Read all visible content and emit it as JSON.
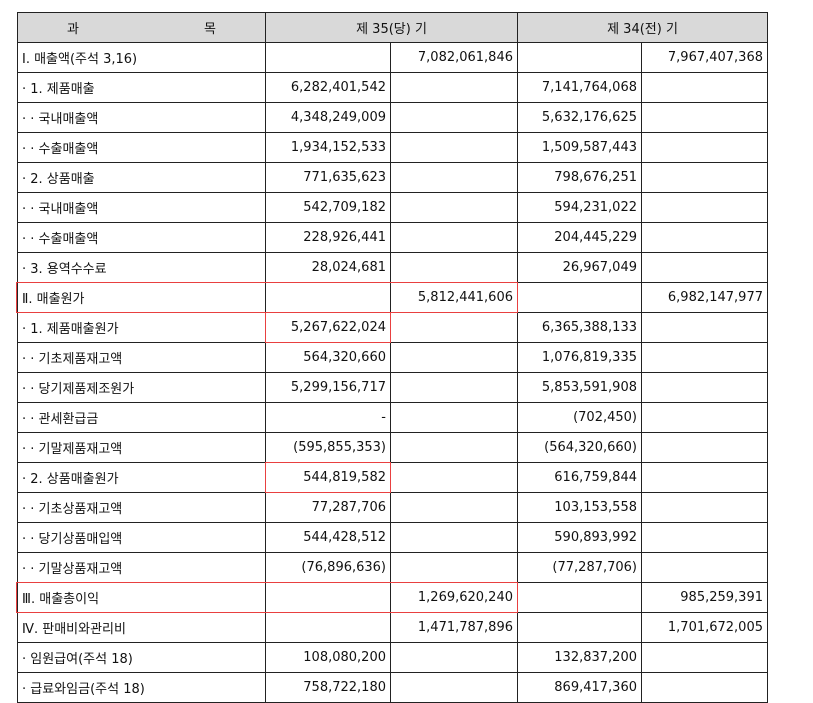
{
  "header": {
    "subject_left": "과",
    "subject_right": "목",
    "current": "제 35(당) 기",
    "previous": "제 34(전) 기"
  },
  "rows": [
    {
      "label": "Ⅰ. 매출액(주석 3,16)",
      "c1": "",
      "c2": "7,082,061,846",
      "p1": "",
      "p2": "7,967,407,368"
    },
    {
      "label": "· 1. 제품매출",
      "c1": "6,282,401,542",
      "c2": "",
      "p1": "7,141,764,068",
      "p2": ""
    },
    {
      "label": "· · 국내매출액",
      "c1": "4,348,249,009",
      "c2": "",
      "p1": "5,632,176,625",
      "p2": ""
    },
    {
      "label": "· · 수출매출액",
      "c1": "1,934,152,533",
      "c2": "",
      "p1": "1,509,587,443",
      "p2": ""
    },
    {
      "label": "· 2. 상품매출",
      "c1": "771,635,623",
      "c2": "",
      "p1": "798,676,251",
      "p2": ""
    },
    {
      "label": "· · 국내매출액",
      "c1": "542,709,182",
      "c2": "",
      "p1": "594,231,022",
      "p2": ""
    },
    {
      "label": "· · 수출매출액",
      "c1": "228,926,441",
      "c2": "",
      "p1": "204,445,229",
      "p2": ""
    },
    {
      "label": "· 3. 용역수수료",
      "c1": "28,024,681",
      "c2": "",
      "p1": "26,967,049",
      "p2": ""
    },
    {
      "label": "Ⅱ. 매출원가",
      "c1": "",
      "c2": "5,812,441,606",
      "p1": "",
      "p2": "6,982,147,977"
    },
    {
      "label": "· 1. 제품매출원가",
      "c1": "5,267,622,024",
      "c2": "",
      "p1": "6,365,388,133",
      "p2": ""
    },
    {
      "label": "· · 기초제품재고액",
      "c1": "564,320,660",
      "c2": "",
      "p1": "1,076,819,335",
      "p2": ""
    },
    {
      "label": "· · 당기제품제조원가",
      "c1": "5,299,156,717",
      "c2": "",
      "p1": "5,853,591,908",
      "p2": ""
    },
    {
      "label": "· · 관세환급금",
      "c1": "-",
      "c2": "",
      "p1": "(702,450)",
      "p2": ""
    },
    {
      "label": "· · 기말제품재고액",
      "c1": "(595,855,353)",
      "c2": "",
      "p1": "(564,320,660)",
      "p2": ""
    },
    {
      "label": "· 2. 상품매출원가",
      "c1": "544,819,582",
      "c2": "",
      "p1": "616,759,844",
      "p2": ""
    },
    {
      "label": "· · 기초상품재고액",
      "c1": "77,287,706",
      "c2": "",
      "p1": "103,153,558",
      "p2": ""
    },
    {
      "label": "· · 당기상품매입액",
      "c1": "544,428,512",
      "c2": "",
      "p1": "590,893,992",
      "p2": ""
    },
    {
      "label": "· · 기말상품재고액",
      "c1": "(76,896,636)",
      "c2": "",
      "p1": "(77,287,706)",
      "p2": ""
    },
    {
      "label": "Ⅲ. 매출총이익",
      "c1": "",
      "c2": "1,269,620,240",
      "p1": "",
      "p2": "985,259,391"
    },
    {
      "label": "Ⅳ. 판매비와관리비",
      "c1": "",
      "c2": "1,471,787,896",
      "p1": "",
      "p2": "1,701,672,005"
    },
    {
      "label": "· 임원급여(주석 18)",
      "c1": "108,080,200",
      "c2": "",
      "p1": "132,837,200",
      "p2": ""
    },
    {
      "label": "· 급료와임금(주석 18)",
      "c1": "758,722,180",
      "c2": "",
      "p1": "869,417,360",
      "p2": ""
    }
  ],
  "highlight_color": "#e84040"
}
